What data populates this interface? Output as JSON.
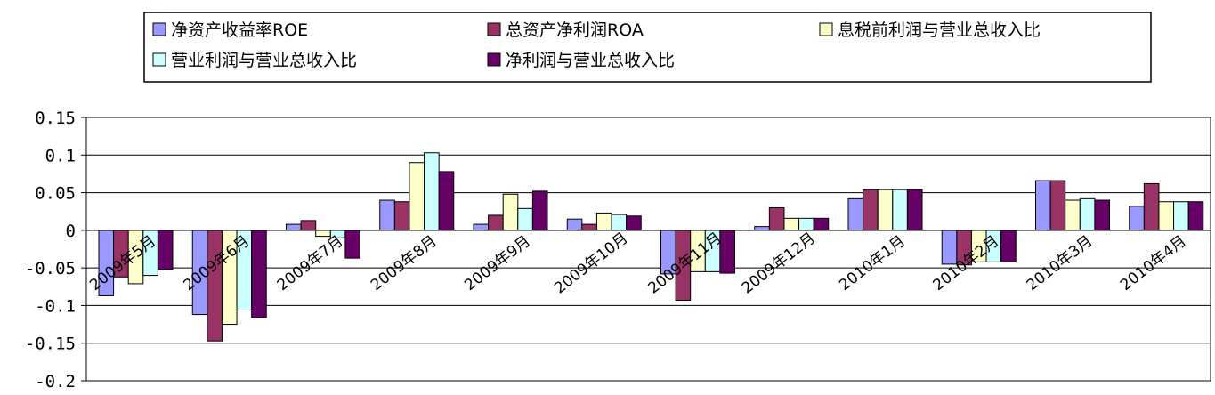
{
  "chart_data": {
    "type": "bar",
    "title": "",
    "xlabel": "",
    "ylabel": "",
    "ylim": [
      -0.2,
      0.15
    ],
    "yticks": [
      "0.15",
      "0.1",
      "0.05",
      "0",
      "-0.05",
      "-0.1",
      "-0.15",
      "-0.2"
    ],
    "ytick_values": [
      0.15,
      0.1,
      0.05,
      0,
      -0.05,
      -0.1,
      -0.15,
      -0.2
    ],
    "grid": true,
    "legend_position": "top",
    "categories": [
      "2009年5月",
      "2009年6月",
      "2009年7月",
      "2009年8月",
      "2009年9月",
      "2009年10月",
      "2009年11月",
      "2009年12月",
      "2010年1月",
      "2010年2月",
      "2010年3月",
      "2010年4月"
    ],
    "series": [
      {
        "name": "净资产收益率ROE",
        "color": "#9999ff",
        "values": [
          -0.087,
          -0.112,
          0.008,
          0.04,
          0.008,
          0.015,
          -0.058,
          0.005,
          0.042,
          -0.045,
          0.066,
          0.032
        ]
      },
      {
        "name": "总资产净利润ROA",
        "color": "#993366",
        "values": [
          -0.062,
          -0.147,
          0.013,
          0.038,
          0.02,
          0.008,
          -0.093,
          0.03,
          0.054,
          -0.046,
          0.066,
          0.062
        ]
      },
      {
        "name": "息税前利润与营业总收入比",
        "color": "#ffffcc",
        "values": [
          -0.071,
          -0.125,
          -0.008,
          0.09,
          0.048,
          0.023,
          -0.055,
          0.016,
          0.054,
          -0.042,
          0.04,
          0.038
        ]
      },
      {
        "name": "营业利润与营业总收入比",
        "color": "#ccffff",
        "values": [
          -0.06,
          -0.106,
          -0.01,
          0.103,
          0.029,
          0.021,
          -0.055,
          0.016,
          0.054,
          -0.042,
          0.042,
          0.038
        ]
      },
      {
        "name": "净利润与营业总收入比",
        "color": "#660066",
        "values": [
          -0.052,
          -0.116,
          -0.037,
          0.078,
          0.052,
          0.019,
          -0.057,
          0.016,
          0.054,
          -0.042,
          0.04,
          0.038
        ]
      }
    ]
  }
}
